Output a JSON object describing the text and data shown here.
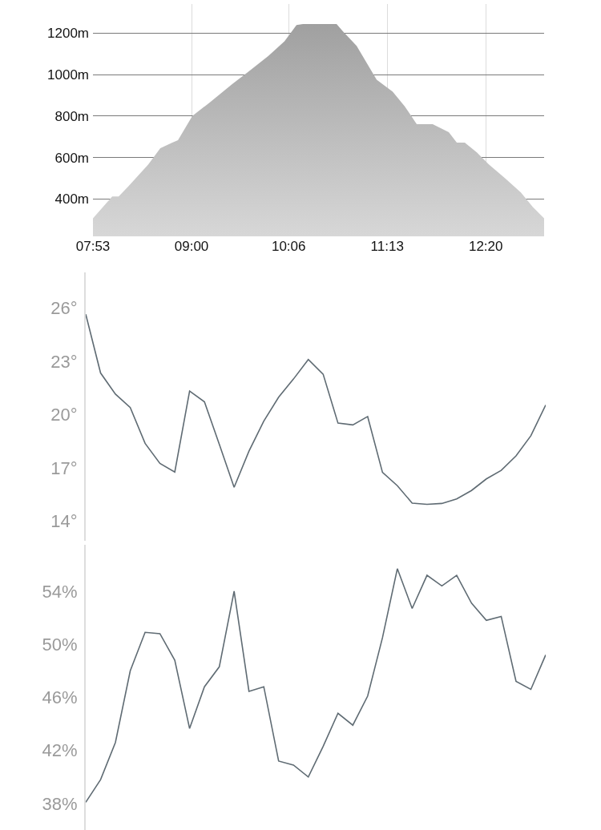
{
  "chart_data": [
    {
      "type": "area",
      "x": [
        7.883,
        8.101,
        8.174,
        8.283,
        8.51,
        8.646,
        8.782,
        8.846,
        9.009,
        9.208,
        9.463,
        9.644,
        9.871,
        10.053,
        10.189,
        10.262,
        10.643,
        10.716,
        10.87,
        11.097,
        11.279,
        11.415,
        11.551,
        11.732,
        11.914,
        12.005,
        12.095,
        12.232,
        12.368,
        12.549,
        12.731,
        12.867,
        12.994
      ],
      "series": [
        {
          "color": "#a0a0a0",
          "values": [
            307,
            412,
            412,
            460,
            567,
            645,
            672,
            683,
            800,
            866,
            955,
            1014,
            1090,
            1160,
            1239,
            1243,
            1243,
            1208,
            1138,
            975,
            917,
            847,
            761,
            761,
            722,
            672,
            672,
            625,
            567,
            501,
            431,
            361,
            307
          ]
        }
      ],
      "xlim": [
        7.883,
        12.994
      ],
      "ylim": [
        220,
        1340
      ],
      "xticks": [
        {
          "value": 7.8833,
          "label": "07:53"
        },
        {
          "value": 9,
          "label": "09:00"
        },
        {
          "value": 10.1,
          "label": "10:06"
        },
        {
          "value": 11.2167,
          "label": "11:13"
        },
        {
          "value": 12.3333,
          "label": "12:20"
        }
      ],
      "yticks": [
        {
          "value": 400,
          "label": "400m"
        },
        {
          "value": 600,
          "label": "600m"
        },
        {
          "value": 800,
          "label": "800m"
        },
        {
          "value": 1000,
          "label": "1000m"
        },
        {
          "value": 1200,
          "label": "1200m"
        }
      ],
      "grid": true
    },
    {
      "type": "line",
      "categories": [
        null,
        null,
        null,
        null,
        null,
        null,
        null,
        null,
        null,
        null,
        null,
        null,
        null,
        null,
        null,
        null,
        null,
        null,
        null,
        null,
        null,
        null,
        null,
        null,
        null,
        null,
        null,
        null,
        null,
        null,
        null,
        null
      ],
      "series": [
        {
          "color": "#5f6b73",
          "values": [
            25.65,
            22.34,
            21.15,
            20.4,
            18.38,
            17.25,
            16.77,
            21.32,
            20.72,
            18.33,
            15.91,
            17.94,
            19.63,
            20.98,
            22.0,
            23.1,
            22.27,
            19.52,
            19.42,
            19.89,
            16.75,
            16.0,
            15.02,
            14.95,
            15.0,
            15.26,
            15.73,
            16.38,
            16.86,
            17.68,
            18.81,
            20.54
          ]
        }
      ],
      "ylim": [
        12.9,
        28
      ],
      "yticks": [
        {
          "value": 14,
          "label": "14°"
        },
        {
          "value": 17,
          "label": "17°"
        },
        {
          "value": 20,
          "label": "20°"
        },
        {
          "value": 23,
          "label": "23°"
        },
        {
          "value": 26,
          "label": "26°"
        }
      ],
      "tick_labels": "y",
      "grid": false
    },
    {
      "type": "line",
      "categories": [
        null,
        null,
        null,
        null,
        null,
        null,
        null,
        null,
        null,
        null,
        null,
        null,
        null,
        null,
        null,
        null,
        null,
        null,
        null,
        null,
        null,
        null,
        null,
        null,
        null,
        null,
        null,
        null,
        null,
        null,
        null,
        null
      ],
      "series": [
        {
          "color": "#5f6b73",
          "values": [
            38.09,
            39.8,
            42.6,
            48.0,
            50.9,
            50.8,
            48.8,
            43.65,
            46.8,
            48.3,
            54.0,
            46.45,
            46.8,
            41.2,
            40.9,
            40.0,
            42.3,
            44.8,
            43.9,
            46.1,
            50.5,
            55.7,
            52.7,
            55.2,
            54.4,
            55.2,
            53.1,
            51.8,
            52.1,
            47.2,
            46.6,
            49.2
          ]
        }
      ],
      "ylim": [
        36,
        57.5
      ],
      "yticks": [
        {
          "value": 38,
          "label": "38%"
        },
        {
          "value": 42,
          "label": "42%"
        },
        {
          "value": 46,
          "label": "46%"
        },
        {
          "value": 50,
          "label": "50%"
        },
        {
          "value": 54,
          "label": "54%"
        }
      ],
      "tick_labels": "y",
      "grid": false
    }
  ]
}
